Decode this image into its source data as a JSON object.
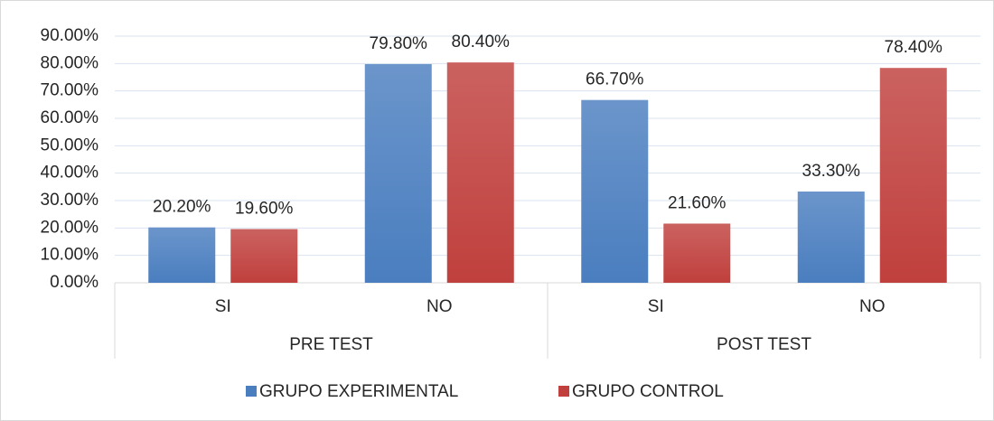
{
  "chart_data": {
    "type": "bar",
    "categories": [
      "SI",
      "NO",
      "SI",
      "NO"
    ],
    "category_groups": [
      "PRE TEST",
      "POST TEST"
    ],
    "series": [
      {
        "name": "GRUPO EXPERIMENTAL",
        "color": "#4a7ebf",
        "values": [
          20.2,
          79.8,
          66.7,
          33.3
        ],
        "value_labels": [
          "20.20%",
          "79.80%",
          "66.70%",
          "33.30%"
        ]
      },
      {
        "name": "GRUPO CONTROL",
        "color": "#c0403d",
        "values": [
          19.6,
          80.4,
          21.6,
          78.4
        ],
        "value_labels": [
          "19.60%",
          "80.40%",
          "21.60%",
          "78.40%"
        ]
      }
    ],
    "ylim": [
      0,
      90
    ],
    "yticks": [
      {
        "value": 0,
        "label": "0.00%"
      },
      {
        "value": 10,
        "label": "10.00%"
      },
      {
        "value": 20,
        "label": "20.00%"
      },
      {
        "value": 30,
        "label": "30.00%"
      },
      {
        "value": 40,
        "label": "40.00%"
      },
      {
        "value": 50,
        "label": "50.00%"
      },
      {
        "value": 60,
        "label": "60.00%"
      },
      {
        "value": 70,
        "label": "70.00%"
      },
      {
        "value": 80,
        "label": "80.00%"
      },
      {
        "value": 90,
        "label": "90.00%"
      }
    ],
    "grid": true,
    "legend": "bottom"
  }
}
